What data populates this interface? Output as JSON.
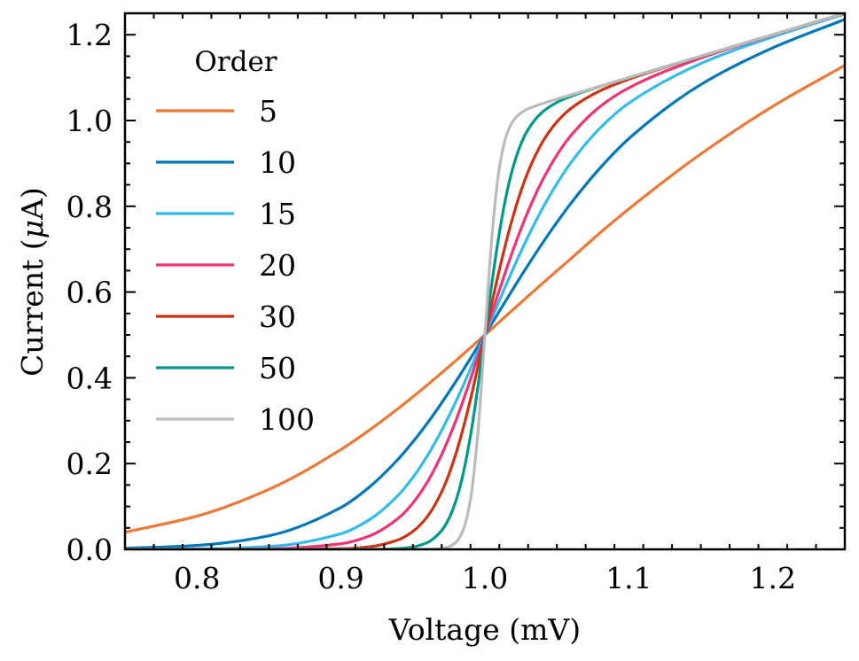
{
  "chart_data": {
    "type": "line",
    "title": "",
    "xlabel": "Voltage (mV)",
    "ylabel": "Current (μA)",
    "ylabel_prefix": "Current (",
    "ylabel_mu": "μ",
    "ylabel_suffix": "A)",
    "xlim": [
      0.75,
      1.25
    ],
    "ylim": [
      0.0,
      1.25
    ],
    "xticks": [
      0.8,
      0.9,
      1.0,
      1.1,
      1.2
    ],
    "xtick_labels": [
      "0.8",
      "0.9",
      "1.0",
      "1.1",
      "1.2"
    ],
    "xminor_step": 0.02,
    "yticks": [
      0.0,
      0.2,
      0.4,
      0.6,
      0.8,
      1.0,
      1.2
    ],
    "ytick_labels": [
      "0.0",
      "0.2",
      "0.4",
      "0.6",
      "0.8",
      "1.0",
      "1.2"
    ],
    "yminor_step": 0.05,
    "grid": false,
    "legend": {
      "title": "Order",
      "placement": "top-left"
    },
    "x": [
      0.75,
      0.8,
      0.85,
      0.9,
      0.92,
      0.94,
      0.95,
      0.96,
      0.97,
      0.975,
      0.98,
      0.985,
      0.99,
      0.995,
      1.0,
      1.005,
      1.01,
      1.015,
      1.02,
      1.025,
      1.03,
      1.04,
      1.05,
      1.06,
      1.08,
      1.1,
      1.15,
      1.2,
      1.25
    ],
    "series": [
      {
        "name": "5",
        "color": "#EE7733",
        "values": [
          0.04,
          0.0776,
          0.1398,
          0.2328,
          0.2785,
          0.3291,
          0.3558,
          0.3833,
          0.4117,
          0.4261,
          0.4407,
          0.4554,
          0.4702,
          0.4851,
          0.5,
          0.5151,
          0.5302,
          0.5453,
          0.5603,
          0.5754,
          0.5905,
          0.6202,
          0.6496,
          0.6786,
          0.7381,
          0.794,
          0.922,
          1.0331,
          1.1287
        ]
      },
      {
        "name": "10",
        "color": "#0077BB",
        "values": [
          0.0024,
          0.0091,
          0.0317,
          0.0976,
          0.146,
          0.2114,
          0.2507,
          0.2943,
          0.3416,
          0.3667,
          0.3923,
          0.4186,
          0.4455,
          0.4726,
          0.5,
          0.5275,
          0.5552,
          0.5825,
          0.6097,
          0.6367,
          0.6629,
          0.7141,
          0.7625,
          0.808,
          0.8892,
          0.9577,
          1.0838,
          1.1695,
          1.2357
        ]
      },
      {
        "name": "15",
        "color": "#33BBEE",
        "values": [
          0.0001,
          0.001,
          0.0064,
          0.0366,
          0.0697,
          0.127,
          0.1679,
          0.218,
          0.2776,
          0.3108,
          0.3459,
          0.3828,
          0.421,
          0.4602,
          0.5,
          0.5401,
          0.5798,
          0.6189,
          0.6572,
          0.6941,
          0.7295,
          0.7949,
          0.8527,
          0.9028,
          0.9824,
          1.0404,
          1.1329,
          1.195,
          1.2485
        ]
      },
      {
        "name": "20",
        "color": "#EE3377",
        "values": [
          0.0,
          0.0001,
          0.0013,
          0.0131,
          0.0316,
          0.073,
          0.1082,
          0.1569,
          0.2214,
          0.2598,
          0.3021,
          0.348,
          0.3968,
          0.4478,
          0.5,
          0.5525,
          0.6042,
          0.6543,
          0.7021,
          0.7468,
          0.7884,
          0.8607,
          0.9195,
          0.9661,
          1.0325,
          1.0762,
          1.1457,
          1.1992,
          1.2499
        ]
      },
      {
        "name": "30",
        "color": "#CC3311",
        "values": [
          0.0,
          0.0,
          0.0001,
          0.0016,
          0.0061,
          0.0224,
          0.0419,
          0.0763,
          0.1344,
          0.1751,
          0.2247,
          0.2834,
          0.3502,
          0.4233,
          0.5,
          0.5772,
          0.6513,
          0.7203,
          0.7817,
          0.8352,
          0.8805,
          0.9497,
          0.9967,
          1.0288,
          1.0694,
          1.0964,
          1.1498,
          1.2,
          1.25
        ]
      },
      {
        "name": "50",
        "color": "#009988",
        "values": [
          0.0,
          0.0,
          0.0,
          0.0,
          0.0002,
          0.0019,
          0.0056,
          0.0159,
          0.044,
          0.0718,
          0.1148,
          0.178,
          0.2653,
          0.3753,
          0.5,
          0.6253,
          0.7374,
          0.8281,
          0.8963,
          0.945,
          0.9791,
          1.0198,
          1.0421,
          1.0569,
          1.0795,
          1.1,
          1.15,
          1.2,
          1.25
        ]
      },
      {
        "name": "100",
        "color": "#BBBBBB",
        "values": [
          0.0,
          0.0,
          0.0,
          0.0,
          0.0,
          0.0,
          0.0,
          0.0003,
          0.0022,
          0.0061,
          0.0169,
          0.0457,
          0.117,
          0.2671,
          0.5,
          0.7343,
          0.8885,
          0.9659,
          1.0009,
          1.0177,
          1.0272,
          1.0396,
          1.05,
          1.06,
          1.08,
          1.1,
          1.15,
          1.2,
          1.25
        ]
      }
    ]
  }
}
